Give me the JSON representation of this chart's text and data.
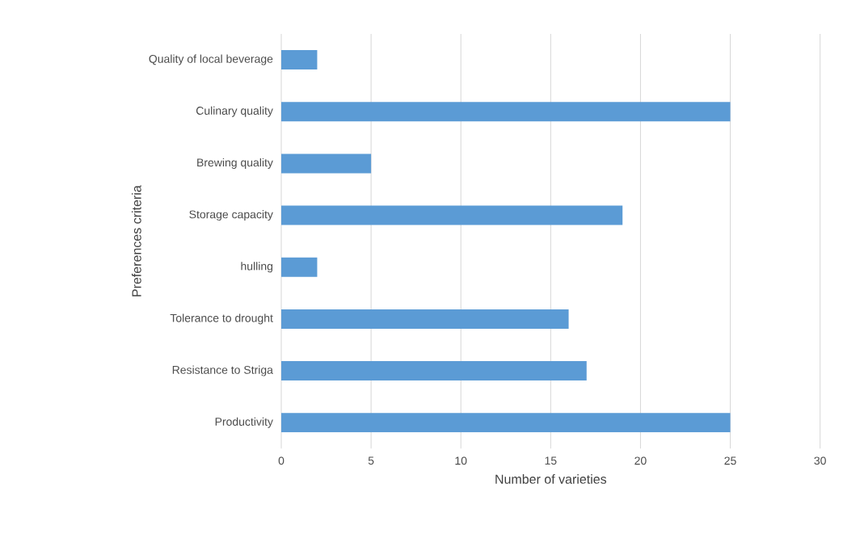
{
  "chart_data": {
    "type": "bar",
    "orientation": "horizontal",
    "xlabel": "Number of varieties",
    "ylabel": "Preferences criteria",
    "categories": [
      "Quality of local beverage",
      "Culinary quality",
      "Brewing quality",
      "Storage capacity",
      "hulling",
      "Tolerance to drought",
      "Resistance to Striga",
      "Productivity"
    ],
    "values": [
      2,
      25,
      5,
      19,
      2,
      16,
      17,
      25
    ],
    "color": "#5b9bd5",
    "xlim": [
      0,
      30
    ],
    "xticks": [
      0,
      5,
      10,
      15,
      20,
      25,
      30
    ],
    "grid": "x"
  }
}
